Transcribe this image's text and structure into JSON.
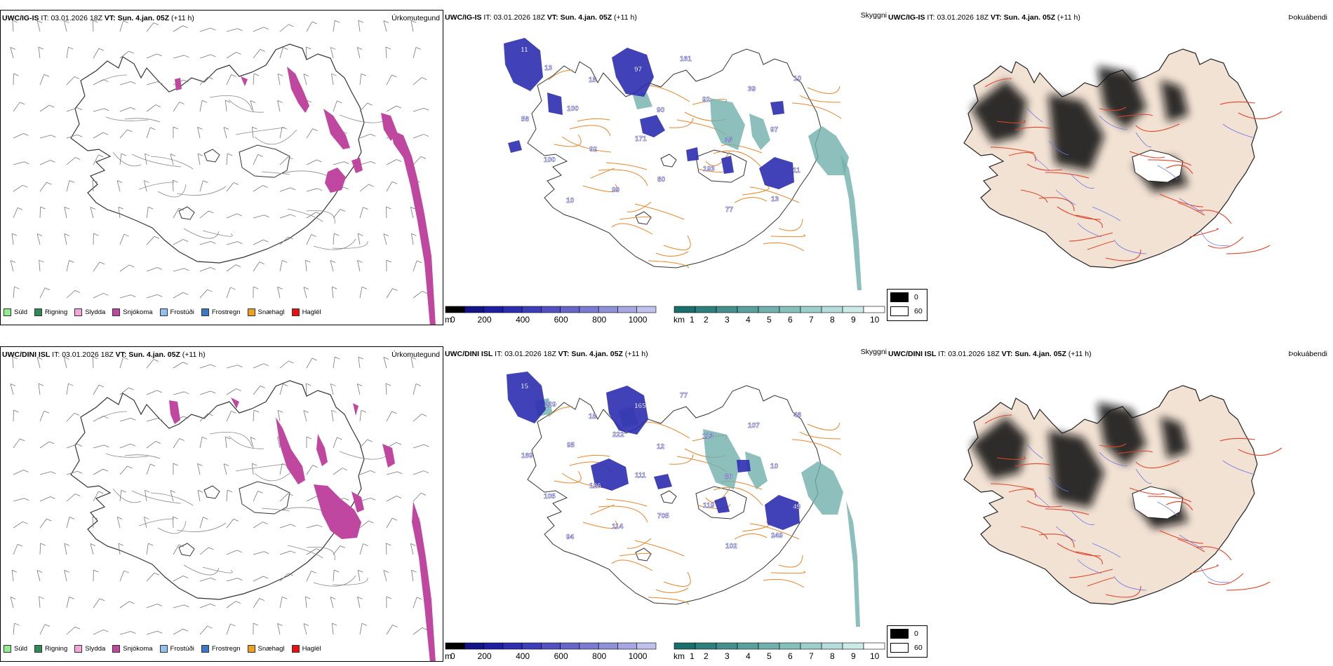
{
  "rows": [
    {
      "model": "UWC/IG-IS",
      "init_label": "IT:",
      "init_value": "03.01.2026 18Z",
      "valid_label": "VT:",
      "valid_value": "Sun. 4.jan. 05Z",
      "lead": "(+11 h)"
    },
    {
      "model": "UWC/DINI ISL",
      "init_label": "IT:",
      "init_value": "03.01.2026 18Z",
      "valid_label": "VT:",
      "valid_value": "Sun. 4.jan. 05Z",
      "lead": "(+11 h)"
    }
  ],
  "panels": {
    "precip_type": {
      "name": "Úrkomutegund"
    },
    "visibility": {
      "name": "Skyggni"
    },
    "fog": {
      "name": "Þokuábendi"
    }
  },
  "precip_legend": [
    {
      "label": "Súld",
      "color": "#90ee90"
    },
    {
      "label": "Rigning",
      "color": "#2e8b57"
    },
    {
      "label": "Slydda",
      "color": "#f4a6d8"
    },
    {
      "label": "Snjókoma",
      "color": "#c0479f"
    },
    {
      "label": "Frostúði",
      "color": "#8ec0f0"
    },
    {
      "label": "Frostregn",
      "color": "#3a78c8"
    },
    {
      "label": "Snæhagl",
      "color": "#f0a020"
    },
    {
      "label": "Haglél",
      "color": "#e81010"
    }
  ],
  "height_bar": {
    "unit": "m",
    "ticks": [
      "0",
      "200",
      "400",
      "600",
      "800",
      "1000"
    ],
    "colors": [
      "#000000",
      "#141488",
      "#1e1ea0",
      "#2d2db0",
      "#3e3eb8",
      "#5151c0",
      "#6666c8",
      "#7a7ad0",
      "#9090d8",
      "#a6a6e0",
      "#c0c0ec"
    ]
  },
  "vis_bar": {
    "unit": "km",
    "ticks": [
      "1",
      "2",
      "3",
      "4",
      "5",
      "6",
      "7",
      "8",
      "9",
      "10"
    ],
    "colors": [
      "#1a6f6c",
      "#2f807d",
      "#45908d",
      "#5aa09d",
      "#70b0ad",
      "#86c0bd",
      "#9ccfcc",
      "#b4dcda",
      "#cceae8",
      "#ffffff"
    ]
  },
  "fog_box": {
    "top": "0",
    "bottom": "60"
  },
  "vis_labels_top": [
    "11",
    "15",
    "90",
    "35",
    "11",
    "10",
    "97",
    "92",
    "97",
    "100",
    "99",
    "161",
    "39",
    "56",
    "92",
    "80",
    "77",
    "10",
    "100",
    "171",
    "193",
    "13",
    "13"
  ],
  "vis_labels_bottom": [
    "15",
    "18",
    "12",
    "80",
    "49",
    "94",
    "165",
    "113",
    "10",
    "105",
    "114",
    "77",
    "107",
    "169",
    "126",
    "705",
    "102",
    "46",
    "95",
    "111",
    "119",
    "249",
    "229",
    "222"
  ]
}
